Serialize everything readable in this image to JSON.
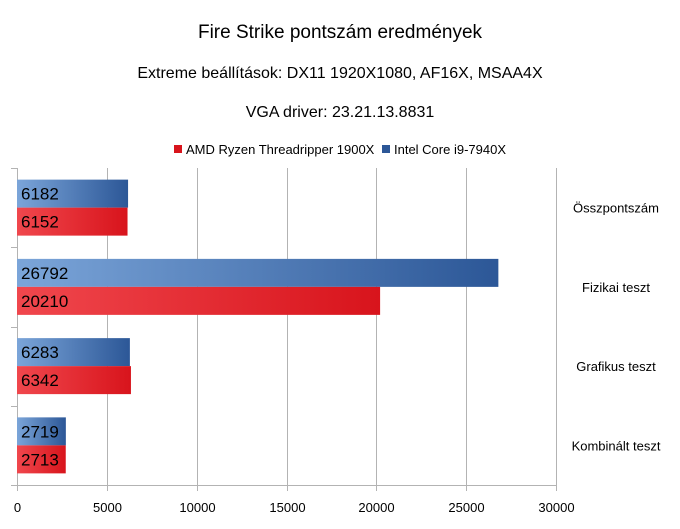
{
  "chart_data": {
    "type": "bar",
    "orientation": "horizontal",
    "title": "Fire Strike pontszám eredmények",
    "subtitle": "Extreme beállítások: DX11 1920X1080, AF16X, MSAA4X",
    "subtitle2": "VGA driver: 23.21.13.8831",
    "categories": [
      "Összpontszám",
      "Fizikai teszt",
      "Grafikus teszt",
      "Kombinált teszt"
    ],
    "series": [
      {
        "name": "AMD Ryzen Threadripper 1900X",
        "values": [
          6152,
          20210,
          6342,
          2713
        ],
        "color": "#d8141c",
        "color_light": "#f0474d"
      },
      {
        "name": "Intel Core i9-7940X",
        "values": [
          6182,
          26792,
          6283,
          2719
        ],
        "color": "#2c5797",
        "color_light": "#7ba5d9"
      }
    ],
    "xlim": [
      0,
      30000
    ],
    "xticks": [
      0,
      5000,
      10000,
      15000,
      20000,
      25000,
      30000
    ],
    "grid": true,
    "legend": "top-center"
  }
}
